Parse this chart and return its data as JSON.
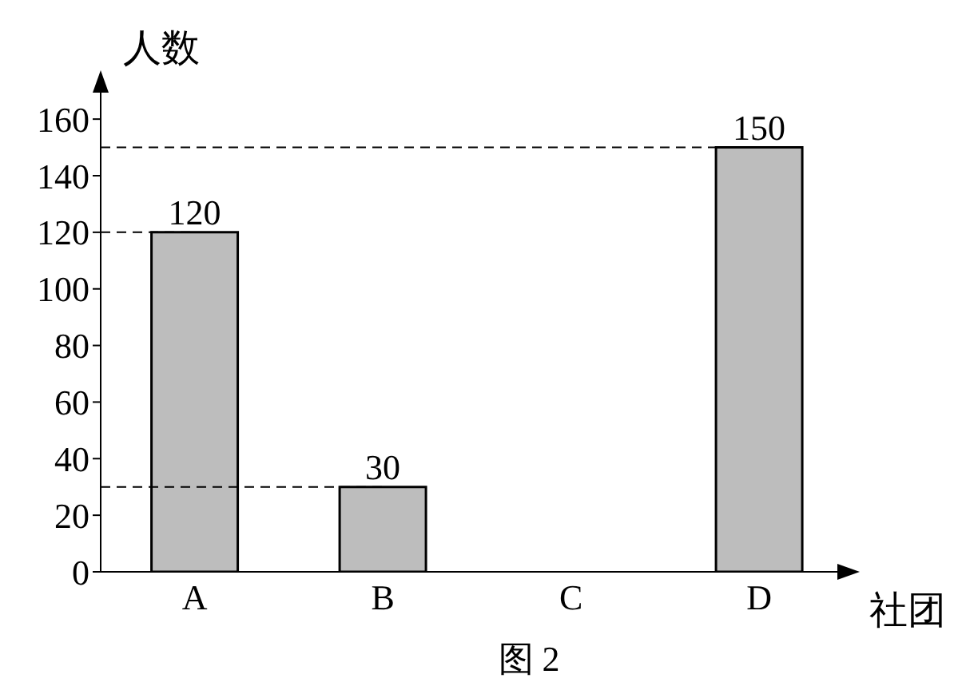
{
  "chart_data": {
    "type": "bar",
    "ylabel": "人数",
    "xlabel": "社团",
    "categories": [
      "A",
      "B",
      "C",
      "D"
    ],
    "values": [
      120,
      30,
      null,
      150
    ],
    "value_labels": [
      "120",
      "30",
      null,
      "150"
    ],
    "color": "#bdbdbd",
    "ylim": [
      0,
      175
    ],
    "yticks": [
      0,
      20,
      40,
      60,
      80,
      100,
      120,
      140,
      160
    ],
    "grid": false,
    "legend": false,
    "ref_lines": [
      {
        "axis": "y",
        "value": 150,
        "line_style": "dashed"
      },
      {
        "axis": "y",
        "value": 120,
        "line_style": "dashed"
      },
      {
        "axis": "y",
        "value": 30,
        "line_style": "dashed"
      }
    ],
    "annotations": [
      "图 2"
    ]
  }
}
